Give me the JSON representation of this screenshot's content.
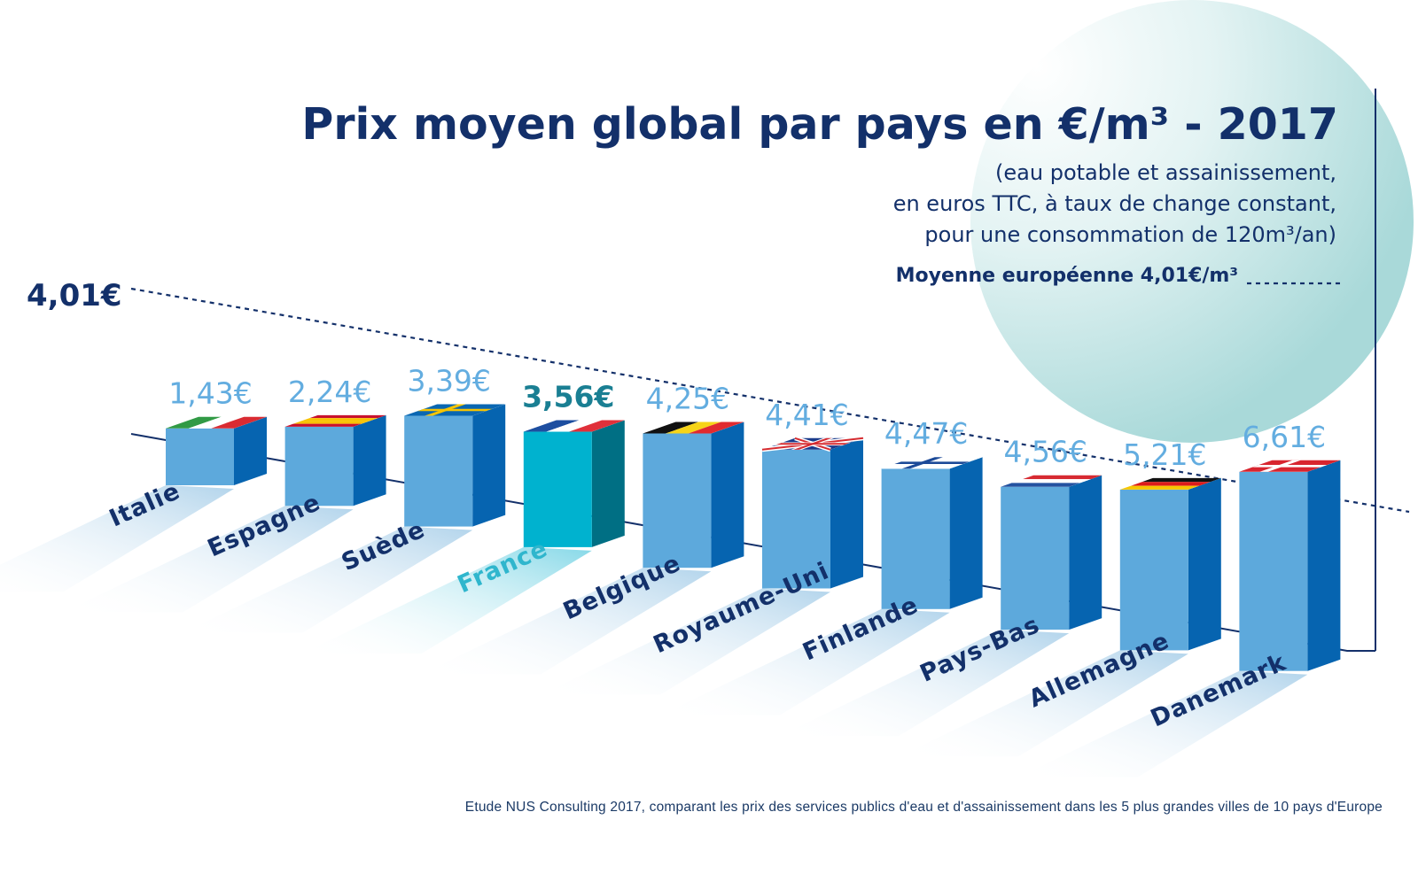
{
  "title": "Prix moyen global par pays en €/m³ - 2017",
  "subtitle": [
    "(eau potable et assainissement,",
    "en euros TTC, à taux de change constant,",
    "pour une consommation de 120m³/an)"
  ],
  "legend": {
    "label": "Moyenne européenne 4,01€/m³"
  },
  "average_label": "4,01€",
  "source": "Etude NUS Consulting 2017, comparant les prix des services publics d'eau et d'assainissement dans les 5 plus grandes villes de 10 pays d'Europe",
  "colors": {
    "navy": "#13306a",
    "bar_light": "#5da9dc",
    "bar_dark": "#0664b0",
    "label_light": "#63ade0",
    "france_front": "#00b2cf",
    "france_side": "#006f84",
    "france_label": "#1a7f93",
    "france_text": "#2fb6cd"
  },
  "chart_data": {
    "type": "bar",
    "title": "Prix moyen global par pays en €/m³ - 2017",
    "categories": [
      "Italie",
      "Espagne",
      "Suède",
      "France",
      "Belgique",
      "Royaume-Uni",
      "Finlande",
      "Pays-Bas",
      "Allemagne",
      "Danemark"
    ],
    "values": [
      1.43,
      2.24,
      3.39,
      3.56,
      4.25,
      4.41,
      4.47,
      4.56,
      5.21,
      6.61
    ],
    "value_labels": [
      "1,43€",
      "2,24€",
      "3,39€",
      "3,56€",
      "4,25€",
      "4,41€",
      "4,47€",
      "4,56€",
      "5,21€",
      "6,61€"
    ],
    "flags": [
      "italy",
      "spain",
      "sweden",
      "france",
      "belgium",
      "united-kingdom",
      "finland",
      "netherlands",
      "germany",
      "denmark"
    ],
    "highlight": "France",
    "average": 4.01,
    "legend_position": "top-right",
    "grid": false
  }
}
